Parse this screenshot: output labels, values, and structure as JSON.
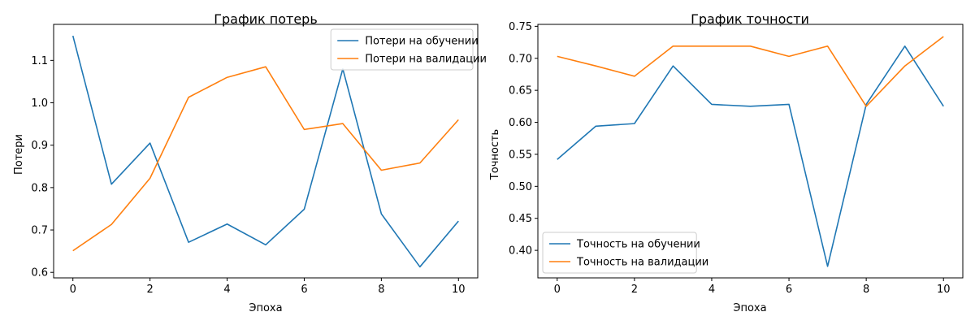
{
  "chart_data": [
    {
      "type": "line",
      "title": "График потерь",
      "xlabel": "Эпоха",
      "ylabel": "Потери",
      "xlim": [
        -0.5,
        10.5
      ],
      "ylim": [
        0.587,
        1.185
      ],
      "xticks": [
        0,
        2,
        4,
        6,
        8,
        10
      ],
      "yticks": [
        0.6,
        0.7,
        0.8,
        0.9,
        1.0,
        1.1
      ],
      "ytick_labels": [
        "0.6",
        "0.7",
        "0.8",
        "0.9",
        "1.0",
        "1.1"
      ],
      "legend_position": "upper right",
      "x": [
        0,
        1,
        2,
        3,
        4,
        5,
        6,
        7,
        8,
        9,
        10
      ],
      "series": [
        {
          "name": "Потери на обучении",
          "color": "#1f77b4",
          "values": [
            1.158,
            0.808,
            0.905,
            0.671,
            0.714,
            0.665,
            0.749,
            1.08,
            0.738,
            0.613,
            0.721
          ]
        },
        {
          "name": "Потери на валидации",
          "color": "#ff7f0e",
          "values": [
            0.651,
            0.713,
            0.822,
            1.013,
            1.06,
            1.085,
            0.937,
            0.951,
            0.841,
            0.858,
            0.96
          ]
        }
      ]
    },
    {
      "type": "line",
      "title": "График точности",
      "xlabel": "Эпоха",
      "ylabel": "Точность",
      "xlim": [
        -0.5,
        10.5
      ],
      "ylim": [
        0.357,
        0.753
      ],
      "xticks": [
        0,
        2,
        4,
        6,
        8,
        10
      ],
      "yticks": [
        0.4,
        0.45,
        0.5,
        0.55,
        0.6,
        0.65,
        0.7,
        0.75
      ],
      "ytick_labels": [
        "0.40",
        "0.45",
        "0.50",
        "0.55",
        "0.60",
        "0.65",
        "0.70",
        "0.75"
      ],
      "legend_position": "lower left",
      "x": [
        0,
        1,
        2,
        3,
        4,
        5,
        6,
        7,
        8,
        9,
        10
      ],
      "series": [
        {
          "name": "Точность на обучении",
          "color": "#1f77b4",
          "values": [
            0.542,
            0.594,
            0.598,
            0.688,
            0.628,
            0.625,
            0.628,
            0.375,
            0.628,
            0.719,
            0.625
          ]
        },
        {
          "name": "Точность на валидации",
          "color": "#ff7f0e",
          "values": [
            0.703,
            0.688,
            0.672,
            0.719,
            0.719,
            0.719,
            0.703,
            0.719,
            0.625,
            0.688,
            0.734
          ]
        }
      ]
    }
  ]
}
